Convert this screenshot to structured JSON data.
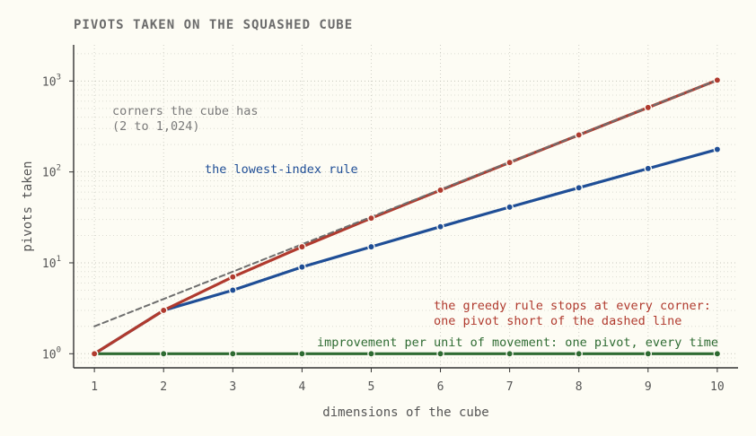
{
  "chart_data": {
    "type": "line",
    "title": "PIVOTS TAKEN ON THE SQUASHED CUBE",
    "xlabel": "dimensions of the cube",
    "ylabel": "pivots taken",
    "x": [
      1,
      2,
      3,
      4,
      5,
      6,
      7,
      8,
      9,
      10
    ],
    "x_ticks": [
      "1",
      "2",
      "3",
      "4",
      "5",
      "6",
      "7",
      "8",
      "9",
      "10"
    ],
    "xlim": [
      0.7,
      10.3
    ],
    "yscale": "log",
    "ylim": [
      0.7,
      2500
    ],
    "y_ticks": [
      {
        "base": "10",
        "exp": "0",
        "value": 1
      },
      {
        "base": "10",
        "exp": "1",
        "value": 10
      },
      {
        "base": "10",
        "exp": "2",
        "value": 100
      },
      {
        "base": "10",
        "exp": "3",
        "value": 1000
      }
    ],
    "grid": true,
    "series": [
      {
        "key": "corners",
        "style": "dashed",
        "color": "#6e6e6e",
        "values": [
          2,
          4,
          8,
          16,
          32,
          64,
          128,
          256,
          512,
          1024
        ],
        "label_lines": [
          "corners the cube has",
          "(2 to 1,024)"
        ]
      },
      {
        "key": "greedy",
        "style": "solid",
        "color": "#b03a2e",
        "values": [
          1,
          3,
          7,
          15,
          31,
          63,
          127,
          255,
          511,
          1023
        ],
        "label_lines": [
          "the greedy rule stops at every corner:",
          "one pivot short of the dashed line"
        ]
      },
      {
        "key": "lowest_index",
        "style": "solid",
        "color": "#1f4e96",
        "values": [
          1,
          3,
          5,
          9,
          15,
          25,
          41,
          67,
          109,
          177
        ],
        "label_lines": [
          "the lowest-index rule"
        ]
      },
      {
        "key": "per_movement",
        "style": "solid",
        "color": "#2e6b32",
        "values": [
          1,
          1,
          1,
          1,
          1,
          1,
          1,
          1,
          1,
          1
        ],
        "label_lines": [
          "improvement per unit of movement: one pivot, every time"
        ]
      }
    ]
  }
}
